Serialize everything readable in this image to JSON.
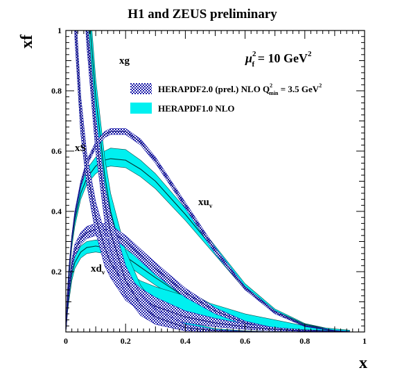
{
  "chart_data": {
    "type": "line",
    "title": "H1 and ZEUS preliminary",
    "xlabel": "x",
    "ylabel": "xf",
    "xlim": [
      0,
      1
    ],
    "ylim": [
      0,
      1
    ],
    "x_ticks": [
      "0",
      "0.2",
      "0.4",
      "0.6",
      "0.8",
      "1"
    ],
    "y_ticks": [
      "0.2",
      "0.4",
      "0.6",
      "0.8",
      "1"
    ],
    "grid": false,
    "scale_label": {
      "mu": "μ",
      "sub": "f",
      "sup": "2",
      "rest": " = 10 GeV",
      "unit_sup": "2"
    },
    "legend": {
      "placement": "top-right",
      "entries": [
        {
          "label": "HERAPDF2.0 (prel.) NLO Q",
          "sup": "2",
          "sub": "min",
          "tail": " = 3.5 GeV",
          "tail_sup": "2",
          "style": "hatched",
          "color": "#1a1aa8"
        },
        {
          "label": "HERAPDF1.0 NLO",
          "style": "filled",
          "color": "#00f0f0"
        }
      ]
    },
    "curve_labels": {
      "xg": "xg",
      "xS": "xS",
      "xuv": {
        "base": "xu",
        "sub": "v"
      },
      "xdv": {
        "base": "xd",
        "sub": "v"
      }
    },
    "x": [
      0.001,
      0.005,
      0.01,
      0.02,
      0.03,
      0.05,
      0.07,
      0.1,
      0.13,
      0.15,
      0.2,
      0.25,
      0.3,
      0.4,
      0.5,
      0.6,
      0.7,
      0.8,
      0.9,
      0.95
    ],
    "series": [
      {
        "name": "xuv",
        "band": "HERAPDF2.0",
        "central": [
          0.02,
          0.12,
          0.2,
          0.31,
          0.39,
          0.49,
          0.56,
          0.62,
          0.655,
          0.665,
          0.665,
          0.63,
          0.57,
          0.42,
          0.27,
          0.145,
          0.065,
          0.02,
          0.004,
          0.001
        ],
        "lower": [
          0.015,
          0.11,
          0.19,
          0.3,
          0.38,
          0.48,
          0.55,
          0.61,
          0.645,
          0.655,
          0.655,
          0.62,
          0.56,
          0.41,
          0.26,
          0.14,
          0.06,
          0.018,
          0.003,
          0.0005
        ],
        "upper": [
          0.025,
          0.13,
          0.21,
          0.32,
          0.4,
          0.5,
          0.57,
          0.63,
          0.665,
          0.675,
          0.675,
          0.64,
          0.58,
          0.43,
          0.28,
          0.15,
          0.07,
          0.022,
          0.005,
          0.0015
        ]
      },
      {
        "name": "xuv",
        "band": "HERAPDF1.0",
        "central": [
          0.02,
          0.11,
          0.19,
          0.3,
          0.37,
          0.46,
          0.51,
          0.55,
          0.57,
          0.575,
          0.57,
          0.54,
          0.5,
          0.39,
          0.27,
          0.15,
          0.07,
          0.025,
          0.006,
          0.002
        ],
        "lower": [
          0.015,
          0.1,
          0.17,
          0.28,
          0.35,
          0.44,
          0.49,
          0.525,
          0.545,
          0.55,
          0.545,
          0.515,
          0.475,
          0.37,
          0.255,
          0.14,
          0.064,
          0.022,
          0.005,
          0.0015
        ],
        "upper": [
          0.025,
          0.12,
          0.21,
          0.32,
          0.39,
          0.48,
          0.54,
          0.58,
          0.6,
          0.61,
          0.605,
          0.57,
          0.525,
          0.41,
          0.285,
          0.16,
          0.076,
          0.028,
          0.007,
          0.003
        ]
      },
      {
        "name": "xdv",
        "band": "HERAPDF2.0",
        "central": [
          0.01,
          0.08,
          0.14,
          0.22,
          0.27,
          0.31,
          0.33,
          0.34,
          0.34,
          0.335,
          0.3,
          0.255,
          0.21,
          0.13,
          0.07,
          0.03,
          0.01,
          0.002,
          0.0005,
          0.0001
        ],
        "lower": [
          0.008,
          0.07,
          0.12,
          0.2,
          0.25,
          0.29,
          0.31,
          0.32,
          0.32,
          0.315,
          0.28,
          0.235,
          0.19,
          0.115,
          0.06,
          0.024,
          0.007,
          0.001,
          0.0002,
          0.0
        ],
        "upper": [
          0.012,
          0.09,
          0.16,
          0.24,
          0.29,
          0.33,
          0.35,
          0.36,
          0.36,
          0.355,
          0.32,
          0.275,
          0.23,
          0.145,
          0.08,
          0.036,
          0.013,
          0.003,
          0.0008,
          0.0002
        ]
      },
      {
        "name": "xdv",
        "band": "HERAPDF1.0",
        "central": [
          0.01,
          0.07,
          0.12,
          0.19,
          0.23,
          0.265,
          0.28,
          0.285,
          0.28,
          0.275,
          0.25,
          0.215,
          0.18,
          0.115,
          0.065,
          0.03,
          0.011,
          0.003,
          0.0006,
          0.0002
        ],
        "lower": [
          0.008,
          0.06,
          0.1,
          0.17,
          0.21,
          0.245,
          0.26,
          0.265,
          0.26,
          0.255,
          0.225,
          0.19,
          0.155,
          0.095,
          0.05,
          0.022,
          0.007,
          0.0015,
          0.0003,
          0.0001
        ],
        "upper": [
          0.012,
          0.08,
          0.14,
          0.21,
          0.25,
          0.285,
          0.3,
          0.305,
          0.305,
          0.3,
          0.275,
          0.24,
          0.205,
          0.14,
          0.085,
          0.045,
          0.02,
          0.007,
          0.002,
          0.001
        ]
      },
      {
        "name": "xS",
        "band": "HERAPDF2.0",
        "central": [
          4.0,
          2.6,
          2.0,
          1.4,
          1.05,
          0.72,
          0.54,
          0.38,
          0.28,
          0.23,
          0.15,
          0.11,
          0.085,
          0.05,
          0.03,
          0.017,
          0.009,
          0.004,
          0.002,
          0.001
        ],
        "lower": [
          3.8,
          2.45,
          1.88,
          1.3,
          0.98,
          0.66,
          0.49,
          0.33,
          0.22,
          0.18,
          0.105,
          0.07,
          0.055,
          0.03,
          0.017,
          0.009,
          0.004,
          0.002,
          0.001,
          0.0005
        ],
        "upper": [
          4.2,
          2.75,
          2.12,
          1.5,
          1.12,
          0.78,
          0.59,
          0.43,
          0.33,
          0.28,
          0.19,
          0.145,
          0.115,
          0.07,
          0.045,
          0.027,
          0.015,
          0.007,
          0.003,
          0.002
        ]
      },
      {
        "name": "xS",
        "band": "HERAPDF1.0",
        "central": [
          4.0,
          2.6,
          2.0,
          1.4,
          1.05,
          0.72,
          0.54,
          0.38,
          0.28,
          0.23,
          0.155,
          0.115,
          0.09,
          0.055,
          0.035,
          0.022,
          0.013,
          0.007,
          0.003,
          0.002
        ],
        "lower": [
          3.8,
          2.45,
          1.88,
          1.3,
          0.98,
          0.66,
          0.49,
          0.33,
          0.24,
          0.195,
          0.125,
          0.09,
          0.065,
          0.035,
          0.02,
          0.011,
          0.006,
          0.003,
          0.001,
          0.0005
        ],
        "upper": [
          4.2,
          2.75,
          2.12,
          1.5,
          1.12,
          0.78,
          0.59,
          0.43,
          0.32,
          0.27,
          0.2,
          0.17,
          0.15,
          0.12,
          0.09,
          0.06,
          0.04,
          0.02,
          0.01,
          0.006
        ]
      },
      {
        "name": "xg",
        "band": "HERAPDF2.0",
        "central": [
          8.0,
          5.0,
          3.6,
          2.45,
          1.9,
          1.32,
          1.0,
          0.66,
          0.43,
          0.33,
          0.17,
          0.09,
          0.05,
          0.015,
          0.004,
          0.001,
          0.0002,
          0.0,
          0.0,
          0.0
        ],
        "lower": [
          6.5,
          4.3,
          3.2,
          2.25,
          1.78,
          1.26,
          0.95,
          0.6,
          0.37,
          0.27,
          0.12,
          0.055,
          0.025,
          0.004,
          0.0,
          0.0,
          0.0,
          0.0,
          0.0,
          0.0
        ],
        "upper": [
          9.5,
          5.7,
          4.0,
          2.65,
          2.02,
          1.38,
          1.05,
          0.72,
          0.49,
          0.39,
          0.22,
          0.125,
          0.075,
          0.026,
          0.008,
          0.002,
          0.0005,
          0.0,
          0.0,
          0.0
        ]
      },
      {
        "name": "xg",
        "band": "HERAPDF1.0",
        "central": [
          8.5,
          5.3,
          3.9,
          2.7,
          2.1,
          1.5,
          1.15,
          0.78,
          0.52,
          0.4,
          0.21,
          0.11,
          0.06,
          0.02,
          0.006,
          0.002,
          0.0005,
          0.0,
          0.0,
          0.0
        ],
        "lower": [
          7.0,
          4.7,
          3.5,
          2.5,
          1.95,
          1.4,
          1.08,
          0.72,
          0.46,
          0.34,
          0.15,
          0.065,
          0.03,
          0.007,
          0.001,
          0.0,
          0.0,
          0.0,
          0.0,
          0.0
        ],
        "upper": [
          10.0,
          5.9,
          4.3,
          2.9,
          2.25,
          1.6,
          1.22,
          0.84,
          0.58,
          0.46,
          0.27,
          0.155,
          0.09,
          0.033,
          0.011,
          0.004,
          0.001,
          0.0,
          0.0,
          0.0
        ]
      }
    ]
  }
}
